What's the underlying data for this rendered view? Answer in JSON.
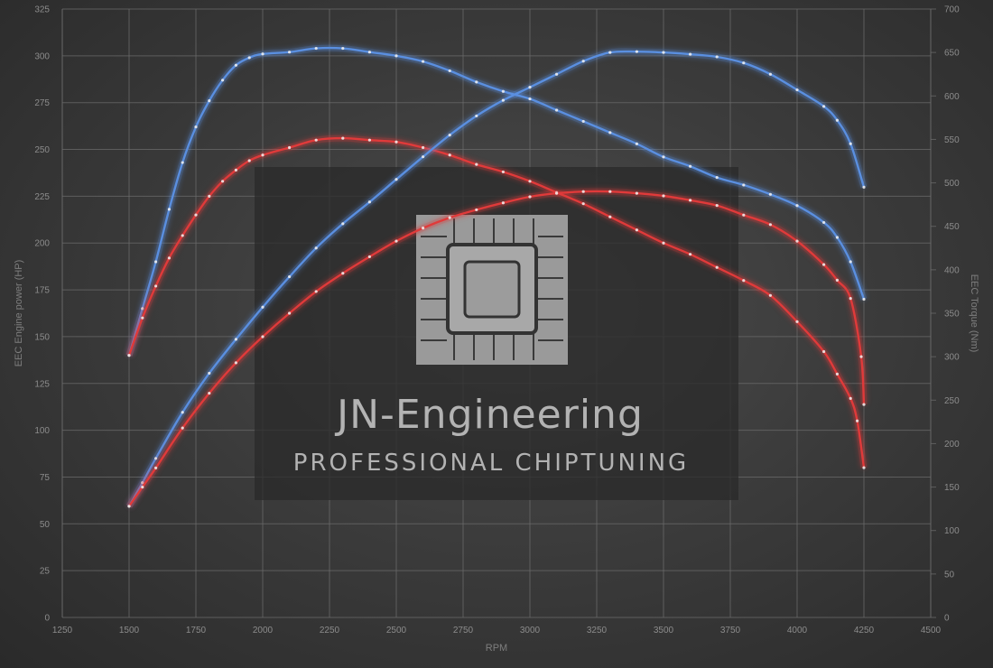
{
  "chart_data": {
    "type": "line",
    "xlabel": "RPM",
    "ylabel": "EEC Engine power (HP)",
    "y2label": "EEC Torque (Nm)",
    "xlim": [
      1250,
      4500
    ],
    "ylim": [
      0,
      325
    ],
    "y2lim": [
      0,
      700
    ],
    "x_ticks": [
      "1250",
      "1500",
      "1750",
      "2000",
      "2250",
      "2500",
      "2750",
      "3000",
      "3250",
      "3500",
      "3750",
      "4000",
      "4250",
      "4500"
    ],
    "y_ticks": [
      "0",
      "25",
      "50",
      "75",
      "100",
      "125",
      "150",
      "175",
      "200",
      "225",
      "250",
      "275",
      "300",
      "325"
    ],
    "y2_ticks": [
      "0",
      "50",
      "100",
      "150",
      "200",
      "250",
      "300",
      "350",
      "400",
      "450",
      "500",
      "550",
      "600",
      "650",
      "700"
    ],
    "grid": true,
    "colors": {
      "tuned": "#5a8fe0",
      "stock": "#e03a3a"
    },
    "series": [
      {
        "axis": "left",
        "color": "#5a8fe0",
        "x": [
          1500,
          1550,
          1600,
          1650,
          1700,
          1750,
          1800,
          1850,
          1900,
          1950,
          2000,
          2100,
          2200,
          2300,
          2400,
          2500,
          2600,
          2700,
          2800,
          2900,
          3000,
          3100,
          3200,
          3300,
          3400,
          3500,
          3600,
          3700,
          3800,
          3900,
          4000,
          4100,
          4150,
          4200,
          4250
        ],
        "values": [
          140,
          165,
          190,
          218,
          243,
          262,
          276,
          287,
          295,
          299,
          301,
          302,
          304,
          304,
          302,
          300,
          297,
          292,
          286,
          281,
          277,
          271,
          265,
          259,
          253,
          246,
          241,
          235,
          231,
          226,
          220,
          211,
          203,
          190,
          170
        ]
      },
      {
        "axis": "left",
        "color": "#e03a3a",
        "x": [
          1500,
          1550,
          1600,
          1650,
          1700,
          1750,
          1800,
          1850,
          1900,
          1950,
          2000,
          2100,
          2200,
          2300,
          2400,
          2500,
          2600,
          2700,
          2800,
          2900,
          3000,
          3100,
          3200,
          3300,
          3400,
          3500,
          3600,
          3700,
          3800,
          3900,
          4000,
          4100,
          4150,
          4200,
          4225,
          4250
        ],
        "values": [
          140,
          160,
          177,
          192,
          204,
          215,
          225,
          233,
          239,
          244,
          247,
          251,
          255,
          256,
          255,
          254,
          251,
          247,
          242,
          238,
          233,
          227,
          221,
          214,
          207,
          200,
          194,
          187,
          180,
          172,
          158,
          142,
          130,
          117,
          105,
          80
        ]
      },
      {
        "axis": "right",
        "color": "#5a8fe0",
        "x": [
          1500,
          1550,
          1600,
          1700,
          1800,
          1900,
          2000,
          2100,
          2200,
          2300,
          2400,
          2500,
          2600,
          2700,
          2800,
          2900,
          3000,
          3100,
          3200,
          3300,
          3400,
          3500,
          3600,
          3700,
          3800,
          3900,
          4000,
          4100,
          4150,
          4200,
          4250
        ],
        "values": [
          128,
          155,
          183,
          236,
          281,
          320,
          357,
          392,
          425,
          453,
          478,
          504,
          530,
          555,
          577,
          595,
          610,
          625,
          640,
          650,
          651,
          650,
          648,
          645,
          638,
          625,
          607,
          588,
          572,
          545,
          495
        ]
      },
      {
        "axis": "right",
        "color": "#e03a3a",
        "x": [
          1500,
          1550,
          1600,
          1700,
          1800,
          1900,
          2000,
          2100,
          2200,
          2300,
          2400,
          2500,
          2600,
          2700,
          2800,
          2900,
          3000,
          3100,
          3200,
          3300,
          3400,
          3500,
          3600,
          3700,
          3800,
          3900,
          4000,
          4100,
          4150,
          4200,
          4240,
          4250
        ],
        "values": [
          128,
          150,
          172,
          218,
          258,
          293,
          323,
          350,
          375,
          396,
          415,
          433,
          448,
          460,
          469,
          477,
          484,
          488,
          490,
          490,
          488,
          485,
          480,
          474,
          463,
          452,
          433,
          406,
          388,
          367,
          300,
          245
        ]
      }
    ]
  },
  "watermark": {
    "title": "JN-Engineering",
    "subtitle": "PROFESSIONAL CHIPTUNING"
  }
}
